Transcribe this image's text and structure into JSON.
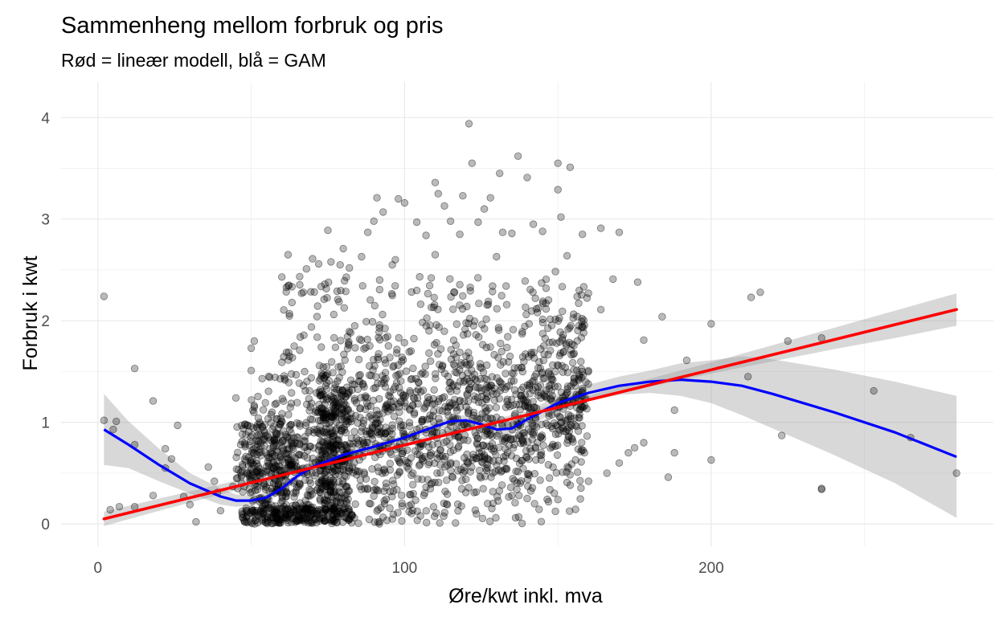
{
  "chart_data": {
    "type": "scatter",
    "title": "Sammenheng mellom forbruk og pris",
    "subtitle": "Rød = lineær modell, blå = GAM",
    "xlabel": "Øre/kwt inkl. mva",
    "ylabel": "Forbruk i kwt",
    "xlim": [
      -12,
      292
    ],
    "ylim": [
      -0.22,
      4.35
    ],
    "x_ticks": [
      0,
      100,
      200
    ],
    "x_tick_labels": [
      "0",
      "100",
      "200"
    ],
    "y_ticks": [
      0,
      1,
      2,
      3,
      4
    ],
    "y_tick_labels": [
      "0",
      "1",
      "2",
      "3",
      "4"
    ],
    "grid": true,
    "legend": "none",
    "colors": {
      "points": "#000000",
      "linear": "#ff0000",
      "gam": "#0000ff",
      "band": "#999999",
      "grid": "#ebebeb"
    },
    "points": [
      [
        2,
        2.24
      ],
      [
        2,
        1.02
      ],
      [
        4,
        0.14
      ],
      [
        5,
        0.93
      ],
      [
        6,
        1.01
      ],
      [
        7,
        0.17
      ],
      [
        12,
        0.17
      ],
      [
        12,
        0.78
      ],
      [
        12,
        1.53
      ],
      [
        18,
        0.28
      ],
      [
        18,
        1.21
      ],
      [
        22,
        0.55
      ],
      [
        22,
        0.74
      ],
      [
        24,
        0.64
      ],
      [
        26,
        0.97
      ],
      [
        28,
        0.27
      ],
      [
        30,
        0.19
      ],
      [
        32,
        0.02
      ],
      [
        36,
        0.56
      ],
      [
        38,
        0.42
      ],
      [
        39,
        0.31
      ],
      [
        40,
        0.13
      ],
      [
        44,
        0.37
      ],
      [
        45,
        1.24
      ],
      [
        48,
        0.78
      ],
      [
        50,
        1.51
      ],
      [
        50,
        1.73
      ],
      [
        51,
        1.8
      ],
      [
        60,
        1.59
      ],
      [
        60,
        2.43
      ],
      [
        62,
        2.65
      ],
      [
        64,
        1.75
      ],
      [
        66,
        1.84
      ],
      [
        67,
        2.28
      ],
      [
        68,
        2.51
      ],
      [
        70,
        2.61
      ],
      [
        72,
        2.56
      ],
      [
        74,
        2.36
      ],
      [
        75,
        2.89
      ],
      [
        76,
        2.58
      ],
      [
        78,
        2.29
      ],
      [
        79,
        2.55
      ],
      [
        80,
        2.71
      ],
      [
        82,
        2.52
      ],
      [
        86,
        2.63
      ],
      [
        88,
        2.87
      ],
      [
        90,
        2.98
      ],
      [
        91,
        3.21
      ],
      [
        93,
        3.07
      ],
      [
        96,
        2.55
      ],
      [
        97,
        2.6
      ],
      [
        98,
        3.2
      ],
      [
        100,
        3.16
      ],
      [
        104,
        2.97
      ],
      [
        107,
        2.84
      ],
      [
        110,
        2.65
      ],
      [
        110,
        3.36
      ],
      [
        111,
        3.25
      ],
      [
        113,
        3.13
      ],
      [
        115,
        2.98
      ],
      [
        118,
        2.85
      ],
      [
        119,
        3.23
      ],
      [
        121,
        3.94
      ],
      [
        122,
        3.55
      ],
      [
        124,
        2.97
      ],
      [
        126,
        3.1
      ],
      [
        128,
        3.21
      ],
      [
        130,
        2.63
      ],
      [
        131,
        3.45
      ],
      [
        132,
        2.87
      ],
      [
        135,
        2.86
      ],
      [
        137,
        3.62
      ],
      [
        140,
        3.41
      ],
      [
        142,
        2.95
      ],
      [
        145,
        2.88
      ],
      [
        150,
        3.29
      ],
      [
        150,
        3.55
      ],
      [
        151,
        3.02
      ],
      [
        154,
        3.51
      ],
      [
        153,
        2.64
      ],
      [
        158,
        2.85
      ],
      [
        164,
        2.91
      ],
      [
        170,
        2.87
      ],
      [
        176,
        2.38
      ],
      [
        164,
        2.11
      ],
      [
        168,
        2.41
      ],
      [
        178,
        1.81
      ],
      [
        184,
        2.04
      ],
      [
        188,
        1.12
      ],
      [
        192,
        1.61
      ],
      [
        200,
        1.97
      ],
      [
        216,
        2.28
      ],
      [
        213,
        2.23
      ],
      [
        225,
        1.8
      ],
      [
        236,
        1.83
      ],
      [
        188,
        0.7
      ],
      [
        200,
        0.63
      ],
      [
        212,
        1.45
      ],
      [
        178,
        0.8
      ],
      [
        186,
        0.46
      ],
      [
        223,
        0.87
      ],
      [
        236,
        0.34
      ],
      [
        236,
        0.35
      ],
      [
        253,
        1.31
      ],
      [
        265,
        0.85
      ],
      [
        280,
        0.5
      ],
      [
        88,
        0.35
      ],
      [
        94,
        0.4
      ],
      [
        120,
        0.31
      ],
      [
        140,
        0.25
      ],
      [
        150,
        0.24
      ],
      [
        160,
        0.42
      ],
      [
        166,
        0.5
      ],
      [
        170,
        0.6
      ],
      [
        173,
        0.7
      ],
      [
        175,
        0.75
      ]
    ],
    "band_linear_x": [
      2,
      20,
      40,
      60,
      80,
      100,
      120,
      140,
      160,
      180,
      200,
      220,
      240,
      260,
      280
    ],
    "band_linear_lo": [
      -0.02,
      0.13,
      0.29,
      0.45,
      0.61,
      0.76,
      0.91,
      1.06,
      1.21,
      1.35,
      1.48,
      1.6,
      1.72,
      1.83,
      1.95
    ],
    "band_linear_hi": [
      0.12,
      0.25,
      0.39,
      0.53,
      0.67,
      0.81,
      0.96,
      1.11,
      1.26,
      1.43,
      1.59,
      1.76,
      1.93,
      2.1,
      2.27
    ],
    "linear_fit": {
      "x": [
        2,
        280
      ],
      "y": [
        0.05,
        2.11
      ]
    },
    "gam_x": [
      2,
      10,
      20,
      30,
      40,
      45,
      50,
      55,
      60,
      65,
      70,
      80,
      90,
      100,
      110,
      115,
      120,
      125,
      130,
      135,
      140,
      150,
      160,
      170,
      180,
      190,
      200,
      210,
      220,
      240,
      260,
      280
    ],
    "gam_y": [
      0.93,
      0.78,
      0.58,
      0.4,
      0.27,
      0.23,
      0.23,
      0.26,
      0.35,
      0.47,
      0.56,
      0.68,
      0.76,
      0.85,
      0.96,
      1.01,
      1.02,
      0.98,
      0.93,
      0.94,
      1.03,
      1.19,
      1.29,
      1.36,
      1.4,
      1.42,
      1.4,
      1.36,
      1.28,
      1.1,
      0.9,
      0.66
    ],
    "gam_band_lo": [
      0.58,
      0.55,
      0.42,
      0.3,
      0.19,
      0.17,
      0.18,
      0.21,
      0.31,
      0.43,
      0.52,
      0.65,
      0.73,
      0.82,
      0.92,
      0.96,
      0.97,
      0.93,
      0.88,
      0.88,
      0.96,
      1.11,
      1.21,
      1.27,
      1.29,
      1.26,
      1.19,
      1.07,
      0.94,
      0.68,
      0.4,
      0.06
    ],
    "gam_band_hi": [
      1.28,
      1.01,
      0.74,
      0.5,
      0.35,
      0.29,
      0.28,
      0.31,
      0.39,
      0.51,
      0.6,
      0.71,
      0.79,
      0.88,
      1.0,
      1.06,
      1.07,
      1.03,
      0.98,
      1.0,
      1.1,
      1.27,
      1.37,
      1.45,
      1.51,
      1.58,
      1.61,
      1.65,
      1.62,
      1.52,
      1.4,
      1.26
    ]
  }
}
